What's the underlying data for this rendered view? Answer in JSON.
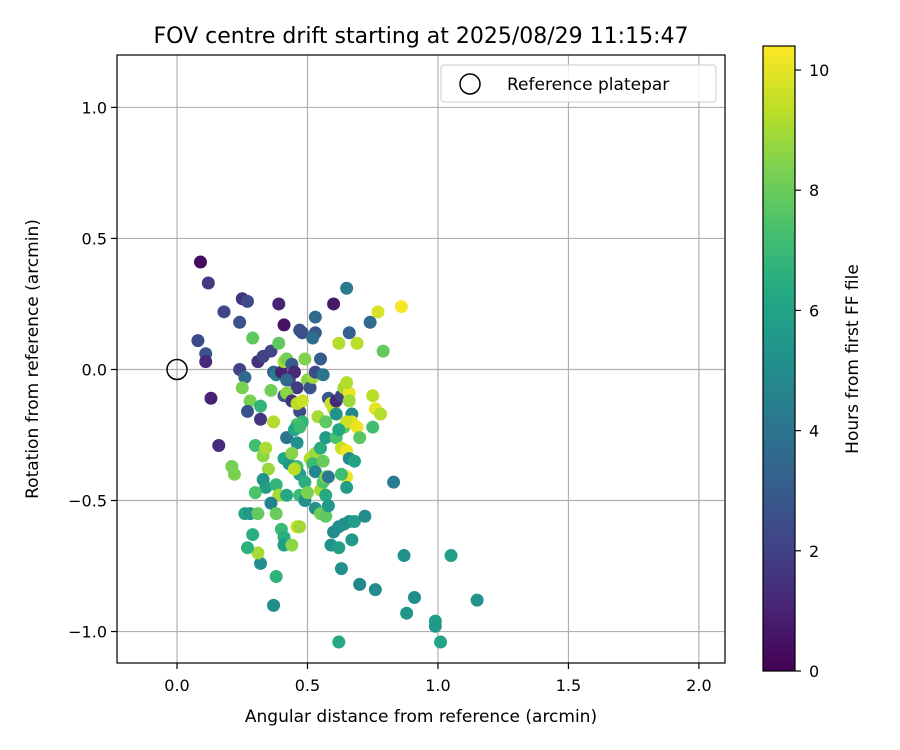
{
  "chart_data": {
    "type": "scatter",
    "title": "FOV centre drift starting at 2025/08/29 11:15:47",
    "xlabel": "Angular distance from reference (arcmin)",
    "ylabel": "Rotation from reference (arcmin)",
    "xlim": [
      -0.23,
      2.1
    ],
    "ylim": [
      -1.12,
      1.2
    ],
    "xticks": [
      0.0,
      0.5,
      1.0,
      1.5,
      2.0
    ],
    "xtick_labels": [
      "0.0",
      "0.5",
      "1.0",
      "1.5",
      "2.0"
    ],
    "yticks": [
      -1.0,
      -0.5,
      0.0,
      0.5,
      1.0
    ],
    "ytick_labels": [
      "−1.0",
      "−0.5",
      "0.0",
      "0.5",
      "1.0"
    ],
    "grid": true,
    "legend": {
      "placement": "top-right",
      "label": "Reference platepar"
    },
    "reference_point": {
      "x": 0.0,
      "y": 0.0
    },
    "colorbar": {
      "label": "Hours from first FF file",
      "range": [
        0,
        10.4
      ],
      "ticks": [
        0,
        2,
        4,
        6,
        8,
        10
      ],
      "tick_labels": [
        "0",
        "2",
        "4",
        "6",
        "8",
        "10"
      ],
      "colormap": "viridis"
    },
    "points": [
      [
        0.09,
        0.41,
        0.3
      ],
      [
        0.12,
        0.33,
        1.8
      ],
      [
        0.18,
        0.22,
        2.2
      ],
      [
        0.25,
        0.27,
        1.5
      ],
      [
        0.27,
        0.26,
        2.4
      ],
      [
        0.24,
        0.18,
        2.6
      ],
      [
        0.08,
        0.11,
        2.4
      ],
      [
        0.11,
        0.06,
        2.6
      ],
      [
        0.11,
        0.03,
        1.2
      ],
      [
        0.13,
        -0.11,
        1.0
      ],
      [
        0.16,
        -0.29,
        1.3
      ],
      [
        0.29,
        0.12,
        7.8
      ],
      [
        0.31,
        0.03,
        1.5
      ],
      [
        0.33,
        0.05,
        2.0
      ],
      [
        0.36,
        0.07,
        2.2
      ],
      [
        0.39,
        0.25,
        1.0
      ],
      [
        0.41,
        0.17,
        0.5
      ],
      [
        0.47,
        0.15,
        2.7
      ],
      [
        0.48,
        0.14,
        2.5
      ],
      [
        0.53,
        0.2,
        3.6
      ],
      [
        0.53,
        0.14,
        2.8
      ],
      [
        0.52,
        0.12,
        3.7
      ],
      [
        0.6,
        0.25,
        0.7
      ],
      [
        0.65,
        0.31,
        4.2
      ],
      [
        0.66,
        0.14,
        3.2
      ],
      [
        0.74,
        0.18,
        3.6
      ],
      [
        0.77,
        0.22,
        9.8
      ],
      [
        0.86,
        0.24,
        10.3
      ],
      [
        0.62,
        0.1,
        9.2
      ],
      [
        0.69,
        0.1,
        9.3
      ],
      [
        0.79,
        0.07,
        7.9
      ],
      [
        0.24,
        0.0,
        2.0
      ],
      [
        0.26,
        -0.03,
        3.5
      ],
      [
        0.25,
        -0.07,
        8.3
      ],
      [
        0.28,
        -0.12,
        8.3
      ],
      [
        0.27,
        -0.16,
        2.7
      ],
      [
        0.32,
        -0.14,
        6.8
      ],
      [
        0.32,
        -0.19,
        1.6
      ],
      [
        0.37,
        -0.2,
        9.2
      ],
      [
        0.36,
        -0.08,
        8.1
      ],
      [
        0.37,
        -0.01,
        3.2
      ],
      [
        0.38,
        -0.02,
        4.5
      ],
      [
        0.39,
        0.1,
        7.8
      ],
      [
        0.4,
        -0.01,
        1.0
      ],
      [
        0.41,
        0.03,
        9.0
      ],
      [
        0.43,
        -0.04,
        2.0
      ],
      [
        0.42,
        0.04,
        8.2
      ],
      [
        0.44,
        0.02,
        3.0
      ],
      [
        0.45,
        -0.01,
        1.2
      ],
      [
        0.46,
        -0.07,
        1.8
      ],
      [
        0.41,
        -0.1,
        2.9
      ],
      [
        0.42,
        -0.09,
        8.6
      ],
      [
        0.42,
        -0.04,
        3.5
      ],
      [
        0.44,
        -0.12,
        1.5
      ],
      [
        0.47,
        -0.16,
        2.4
      ],
      [
        0.46,
        -0.13,
        9.3
      ],
      [
        0.48,
        -0.12,
        9.6
      ],
      [
        0.48,
        -0.2,
        6.8
      ],
      [
        0.46,
        -0.21,
        7.4
      ],
      [
        0.5,
        -0.04,
        8.5
      ],
      [
        0.51,
        -0.07,
        2.7
      ],
      [
        0.52,
        -0.03,
        8.9
      ],
      [
        0.49,
        0.04,
        8.4
      ],
      [
        0.53,
        -0.01,
        2.4
      ],
      [
        0.55,
        0.04,
        3.1
      ],
      [
        0.56,
        -0.02,
        4.0
      ],
      [
        0.58,
        -0.11,
        2.9
      ],
      [
        0.6,
        -0.15,
        9.3
      ],
      [
        0.59,
        -0.13,
        9.5
      ],
      [
        0.61,
        -0.12,
        1.2
      ],
      [
        0.63,
        -0.1,
        2.0
      ],
      [
        0.64,
        -0.07,
        9.0
      ],
      [
        0.66,
        -0.09,
        10.1
      ],
      [
        0.65,
        -0.05,
        9.2
      ],
      [
        0.66,
        -0.12,
        8.9
      ],
      [
        0.67,
        -0.17,
        4.8
      ],
      [
        0.64,
        -0.22,
        7.8
      ],
      [
        0.67,
        -0.2,
        9.9
      ],
      [
        0.65,
        -0.2,
        9.6
      ],
      [
        0.69,
        -0.22,
        10.1
      ],
      [
        0.7,
        -0.26,
        7.7
      ],
      [
        0.75,
        -0.1,
        9.3
      ],
      [
        0.76,
        -0.15,
        10.0
      ],
      [
        0.78,
        -0.17,
        9.2
      ],
      [
        0.75,
        -0.22,
        7.2
      ],
      [
        0.21,
        -0.37,
        8.2
      ],
      [
        0.22,
        -0.4,
        8.3
      ],
      [
        0.3,
        -0.29,
        7.2
      ],
      [
        0.33,
        -0.33,
        8.6
      ],
      [
        0.34,
        -0.3,
        9.1
      ],
      [
        0.35,
        -0.38,
        8.8
      ],
      [
        0.33,
        -0.42,
        5.4
      ],
      [
        0.34,
        -0.45,
        5.8
      ],
      [
        0.3,
        -0.47,
        7.4
      ],
      [
        0.38,
        -0.44,
        6.8
      ],
      [
        0.39,
        -0.48,
        9.0
      ],
      [
        0.36,
        -0.51,
        4.6
      ],
      [
        0.41,
        -0.34,
        6.1
      ],
      [
        0.43,
        -0.36,
        5.6
      ],
      [
        0.42,
        -0.26,
        3.9
      ],
      [
        0.45,
        -0.23,
        6.1
      ],
      [
        0.47,
        -0.22,
        7.0
      ],
      [
        0.46,
        -0.28,
        5.2
      ],
      [
        0.44,
        -0.32,
        8.5
      ],
      [
        0.46,
        -0.37,
        7.3
      ],
      [
        0.47,
        -0.4,
        5.9
      ],
      [
        0.49,
        -0.43,
        6.5
      ],
      [
        0.45,
        -0.38,
        9.3
      ],
      [
        0.47,
        -0.48,
        7.0
      ],
      [
        0.49,
        -0.5,
        5.1
      ],
      [
        0.5,
        -0.47,
        8.3
      ],
      [
        0.51,
        -0.34,
        9.2
      ],
      [
        0.53,
        -0.32,
        8.9
      ],
      [
        0.52,
        -0.36,
        7.0
      ],
      [
        0.53,
        -0.39,
        4.8
      ],
      [
        0.55,
        -0.46,
        9.0
      ],
      [
        0.56,
        -0.43,
        7.5
      ],
      [
        0.57,
        -0.41,
        8.5
      ],
      [
        0.58,
        -0.41,
        4.2
      ],
      [
        0.56,
        -0.35,
        8.0
      ],
      [
        0.55,
        -0.3,
        6.4
      ],
      [
        0.57,
        -0.26,
        5.7
      ],
      [
        0.61,
        -0.26,
        7.4
      ],
      [
        0.62,
        -0.23,
        6.2
      ],
      [
        0.61,
        -0.17,
        5.3
      ],
      [
        0.54,
        -0.18,
        9.0
      ],
      [
        0.57,
        -0.2,
        7.8
      ],
      [
        0.63,
        -0.3,
        9.5
      ],
      [
        0.65,
        -0.31,
        10.2
      ],
      [
        0.66,
        -0.34,
        4.9
      ],
      [
        0.68,
        -0.35,
        6.0
      ],
      [
        0.65,
        -0.41,
        10.1
      ],
      [
        0.65,
        -0.45,
        5.7
      ],
      [
        0.63,
        -0.4,
        7.2
      ],
      [
        0.57,
        -0.48,
        6.3
      ],
      [
        0.53,
        -0.53,
        5.2
      ],
      [
        0.55,
        -0.55,
        8.1
      ],
      [
        0.57,
        -0.56,
        7.8
      ],
      [
        0.58,
        -0.52,
        5.5
      ],
      [
        0.6,
        -0.62,
        4.9
      ],
      [
        0.62,
        -0.6,
        5.0
      ],
      [
        0.64,
        -0.59,
        5.3
      ],
      [
        0.66,
        -0.58,
        5.1
      ],
      [
        0.68,
        -0.58,
        5.8
      ],
      [
        0.72,
        -0.56,
        5.0
      ],
      [
        0.59,
        -0.67,
        5.3
      ],
      [
        0.62,
        -0.68,
        5.9
      ],
      [
        0.67,
        -0.65,
        5.5
      ],
      [
        0.63,
        -0.76,
        5.2
      ],
      [
        0.7,
        -0.82,
        4.8
      ],
      [
        0.76,
        -0.84,
        5.0
      ],
      [
        0.83,
        -0.43,
        4.3
      ],
      [
        0.87,
        -0.71,
        5.2
      ],
      [
        0.88,
        -0.93,
        5.4
      ],
      [
        0.91,
        -0.87,
        5.0
      ],
      [
        0.99,
        -0.96,
        5.8
      ],
      [
        0.99,
        -0.98,
        5.5
      ],
      [
        1.01,
        -1.04,
        6.0
      ],
      [
        1.05,
        -0.71,
        5.9
      ],
      [
        1.15,
        -0.88,
        5.3
      ],
      [
        0.62,
        -1.04,
        6.3
      ],
      [
        0.37,
        -0.9,
        5.0
      ],
      [
        0.32,
        -0.74,
        5.0
      ],
      [
        0.31,
        -0.7,
        9.0
      ],
      [
        0.27,
        -0.68,
        6.6
      ],
      [
        0.29,
        -0.63,
        6.5
      ],
      [
        0.26,
        -0.55,
        6.1
      ],
      [
        0.28,
        -0.55,
        5.5
      ],
      [
        0.31,
        -0.55,
        7.9
      ],
      [
        0.38,
        -0.55,
        8.0
      ],
      [
        0.4,
        -0.61,
        7.0
      ],
      [
        0.41,
        -0.64,
        6.5
      ],
      [
        0.41,
        -0.67,
        5.9
      ],
      [
        0.44,
        -0.67,
        8.6
      ],
      [
        0.46,
        -0.6,
        9.6
      ],
      [
        0.47,
        -0.6,
        8.9
      ],
      [
        0.38,
        -0.79,
        6.7
      ],
      [
        0.42,
        -0.48,
        6.3
      ]
    ]
  }
}
